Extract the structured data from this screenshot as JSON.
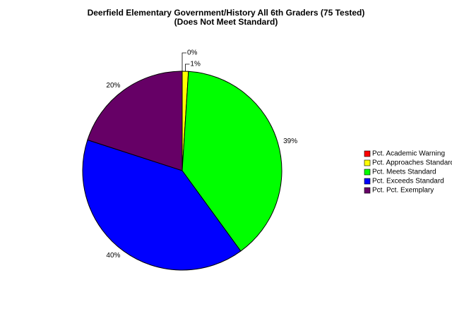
{
  "chart_data": {
    "type": "pie",
    "title": "Deerfield Elementary Government/History All 6th Graders (75 Tested)",
    "subtitle": "(Does Not Meet Standard)",
    "categories": [
      "Pct. Academic Warning",
      "Pct. Approaches Standard",
      "Pct. Meets Standard",
      "Pct. Exceeds Standard",
      "Pct. Pct. Exemplary"
    ],
    "values": [
      0,
      1,
      39,
      40,
      20
    ],
    "value_labels": [
      "0%",
      "1%",
      "39%",
      "40%",
      "20%"
    ],
    "colors": [
      "#ff0000",
      "#ffff00",
      "#00ff00",
      "#0000ff",
      "#660066"
    ],
    "legend": "right"
  }
}
